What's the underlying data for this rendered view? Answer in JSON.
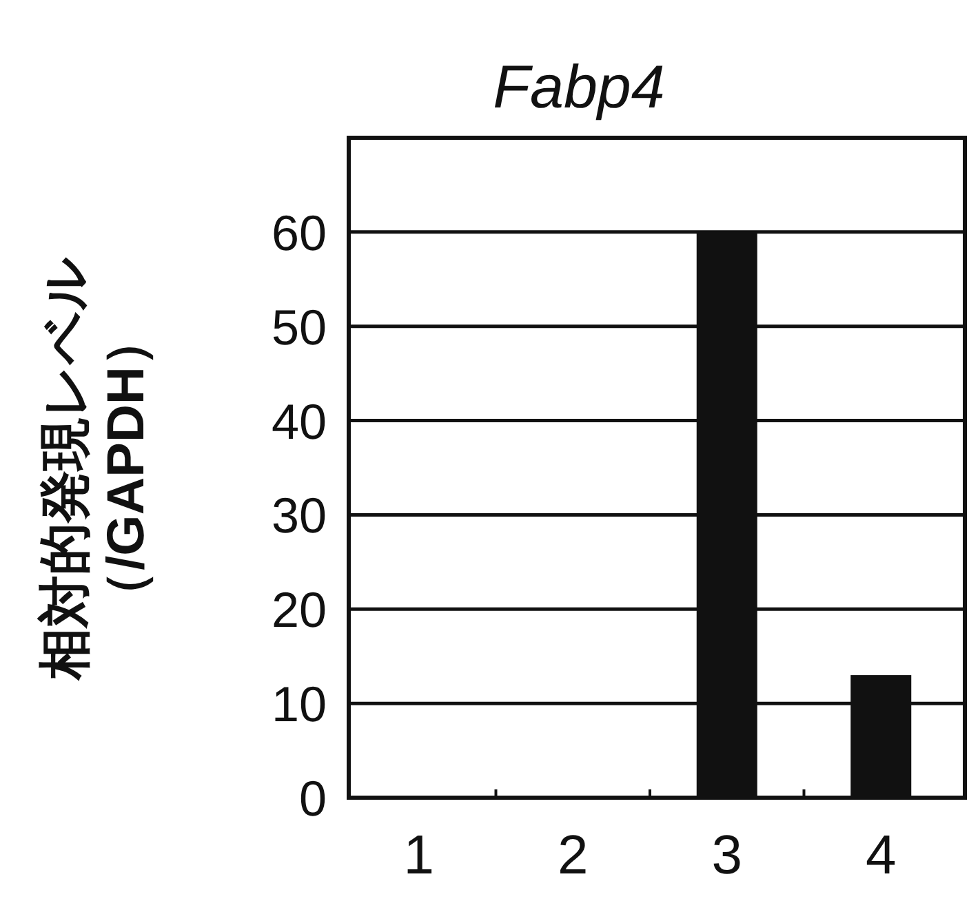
{
  "chart_data": {
    "type": "bar",
    "title": "Fabp4",
    "ylabel": "相対的発現レベル（/GAPDH）",
    "categories": [
      "1",
      "2",
      "3",
      "4"
    ],
    "values": [
      0,
      0,
      60,
      13
    ],
    "color": "#111111",
    "ylim": [
      0,
      70
    ],
    "yticks": [
      0,
      10,
      20,
      30,
      40,
      50,
      60
    ],
    "grid": "y"
  }
}
